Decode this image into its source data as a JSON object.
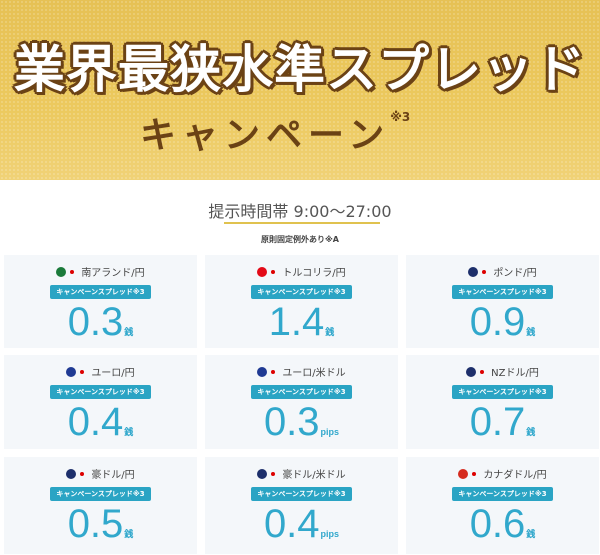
{
  "banner": {
    "title": "業界最狭水準スプレッド",
    "subtitle": "キャンペーン",
    "subtitle_note": "※3"
  },
  "hours": "提示時間帯 9:00〜27:00",
  "note": "原則固定例外あり※A",
  "badge_label": "キャンペーンスプレッド※3",
  "accent_color": "#31a8cc",
  "cards": [
    {
      "pair": "南アランド/円",
      "value": "0.3",
      "unit": "銭",
      "flag_color": "#1a7a3a"
    },
    {
      "pair": "トルコリラ/円",
      "value": "1.4",
      "unit": "銭",
      "flag_color": "#e30a17"
    },
    {
      "pair": "ポンド/円",
      "value": "0.9",
      "unit": "銭",
      "flag_color": "#1d2f6b"
    },
    {
      "pair": "ユーロ/円",
      "value": "0.4",
      "unit": "銭",
      "flag_color": "#1f3a93"
    },
    {
      "pair": "ユーロ/米ドル",
      "value": "0.3",
      "unit": "pips",
      "flag_color": "#1f3a93"
    },
    {
      "pair": "NZドル/円",
      "value": "0.7",
      "unit": "銭",
      "flag_color": "#1d2f6b"
    },
    {
      "pair": "豪ドル/円",
      "value": "0.5",
      "unit": "銭",
      "flag_color": "#1d2f6b"
    },
    {
      "pair": "豪ドル/米ドル",
      "value": "0.4",
      "unit": "pips",
      "flag_color": "#1d2f6b"
    },
    {
      "pair": "カナダドル/円",
      "value": "0.6",
      "unit": "銭",
      "flag_color": "#d52b1e"
    }
  ]
}
